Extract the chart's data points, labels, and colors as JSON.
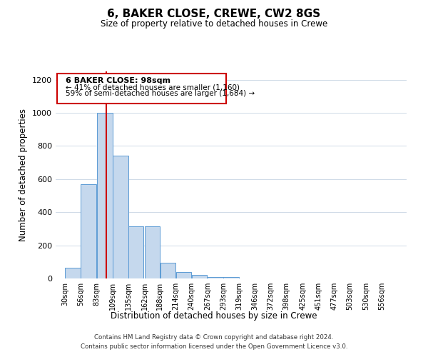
{
  "title": "6, BAKER CLOSE, CREWE, CW2 8GS",
  "subtitle": "Size of property relative to detached houses in Crewe",
  "xlabel": "Distribution of detached houses by size in Crewe",
  "ylabel": "Number of detached properties",
  "bin_labels": [
    "30sqm",
    "56sqm",
    "83sqm",
    "109sqm",
    "135sqm",
    "162sqm",
    "188sqm",
    "214sqm",
    "240sqm",
    "267sqm",
    "293sqm",
    "319sqm",
    "346sqm",
    "372sqm",
    "398sqm",
    "425sqm",
    "451sqm",
    "477sqm",
    "503sqm",
    "530sqm",
    "556sqm"
  ],
  "bar_heights": [
    65,
    570,
    1000,
    740,
    315,
    315,
    95,
    40,
    20,
    10,
    10,
    0,
    0,
    0,
    0,
    0,
    0,
    0,
    0,
    0,
    0
  ],
  "bar_color": "#c5d8ed",
  "bar_edge_color": "#5b9bd5",
  "vline_x": 98,
  "vline_color": "#cc0000",
  "ylim": [
    0,
    1250
  ],
  "yticks": [
    0,
    200,
    400,
    600,
    800,
    1000,
    1200
  ],
  "annotation_title": "6 BAKER CLOSE: 98sqm",
  "annotation_line1": "← 41% of detached houses are smaller (1,160)",
  "annotation_line2": "59% of semi-detached houses are larger (1,684) →",
  "annotation_box_color": "#ffffff",
  "annotation_box_edge": "#cc0000",
  "footer_line1": "Contains HM Land Registry data © Crown copyright and database right 2024.",
  "footer_line2": "Contains public sector information licensed under the Open Government Licence v3.0.",
  "bin_edges": [
    30,
    56,
    83,
    109,
    135,
    162,
    188,
    214,
    240,
    267,
    293,
    319,
    346,
    372,
    398,
    425,
    451,
    477,
    503,
    530,
    556
  ],
  "bin_width": 26
}
